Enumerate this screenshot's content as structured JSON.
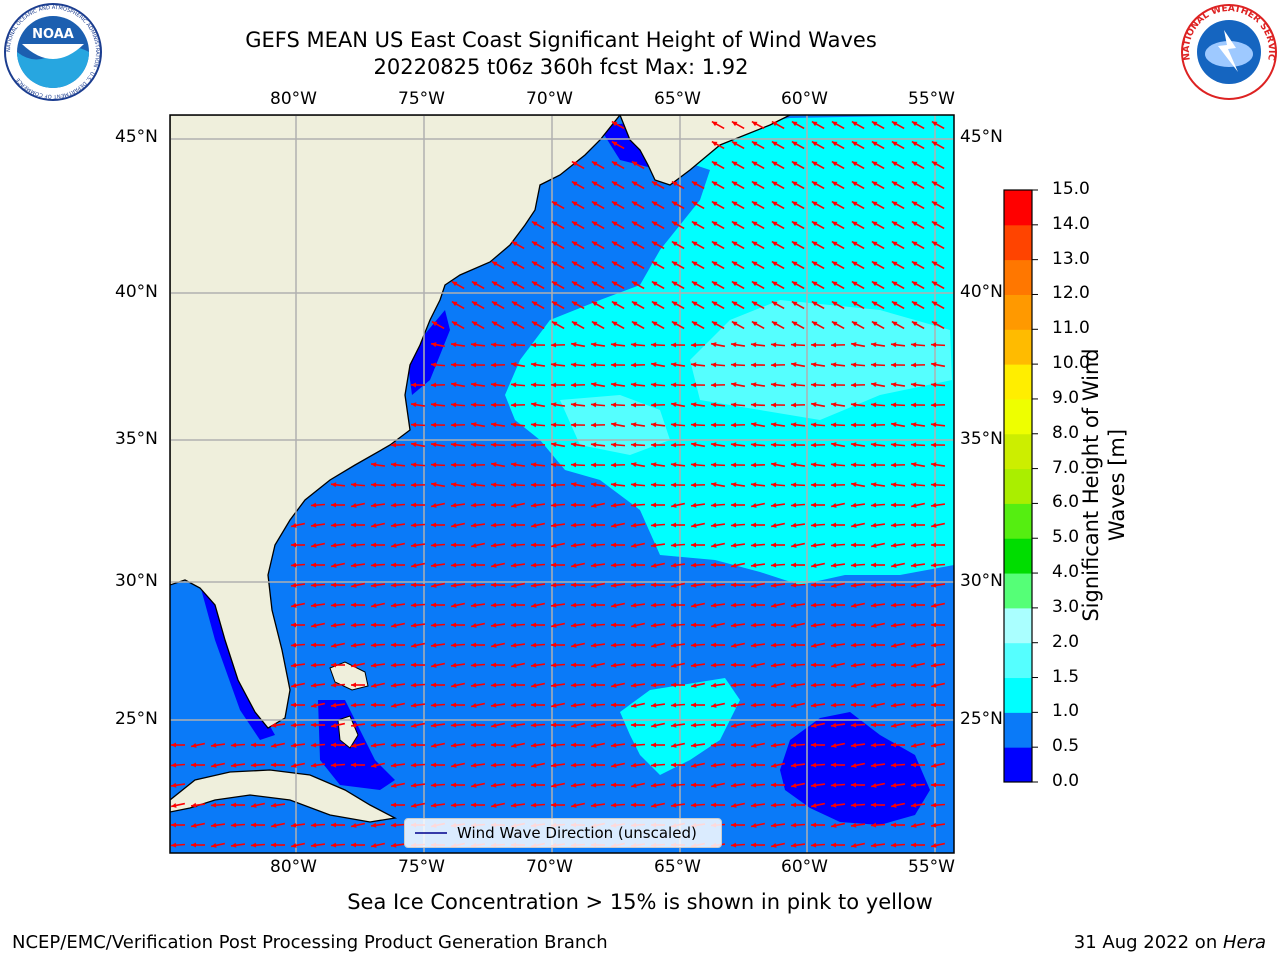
{
  "header": {
    "title_line1": "GEFS MEAN US East Coast Significant Height of Wind Waves",
    "title_line2": "20220825 t06z 360h fcst   Max: 1.92"
  },
  "logos": {
    "left": "NOAA",
    "left_ring": "NATIONAL OCEANIC AND ATMOSPHERIC ADMINISTRATION · U.S. DEPARTMENT OF COMMERCE",
    "right_ring": "NATIONAL WEATHER SERVICE"
  },
  "map": {
    "lon_labels": [
      "80°W",
      "75°W",
      "70°W",
      "65°W",
      "60°W",
      "55°W"
    ],
    "lat_labels": [
      "45°N",
      "40°N",
      "35°N",
      "30°N",
      "25°N"
    ],
    "lon_extent": [
      -85,
      -54.2
    ],
    "lat_extent": [
      20.5,
      45.8
    ],
    "legend_label": "Wind Wave Direction (unscaled)",
    "arrow_color": "#ff0000",
    "land_color": "#efefdc"
  },
  "colorbar": {
    "label": "Significant Height of Wind Waves [m]",
    "ticks": [
      "0.0",
      "0.5",
      "1.0",
      "1.5",
      "2.0",
      "3.0",
      "4.0",
      "5.0",
      "6.0",
      "7.0",
      "8.0",
      "9.0",
      "10.0",
      "11.0",
      "12.0",
      "13.0",
      "14.0",
      "15.0"
    ],
    "colors": [
      "#0000ff",
      "#0a7af8",
      "#00ffff",
      "#55ffff",
      "#aaffff",
      "#55ff77",
      "#00dd00",
      "#55ee11",
      "#aaee00",
      "#ccee00",
      "#eeff00",
      "#ffee00",
      "#ffbb00",
      "#ff9900",
      "#ff7700",
      "#ff4400",
      "#ff0000"
    ]
  },
  "footer": {
    "note": "Sea Ice Concentration > 15% is shown in pink to yellow",
    "left": "NCEP/EMC/Verification Post Processing Product Generation Branch",
    "date": "31 Aug 2022 on ",
    "host": "Hera"
  }
}
